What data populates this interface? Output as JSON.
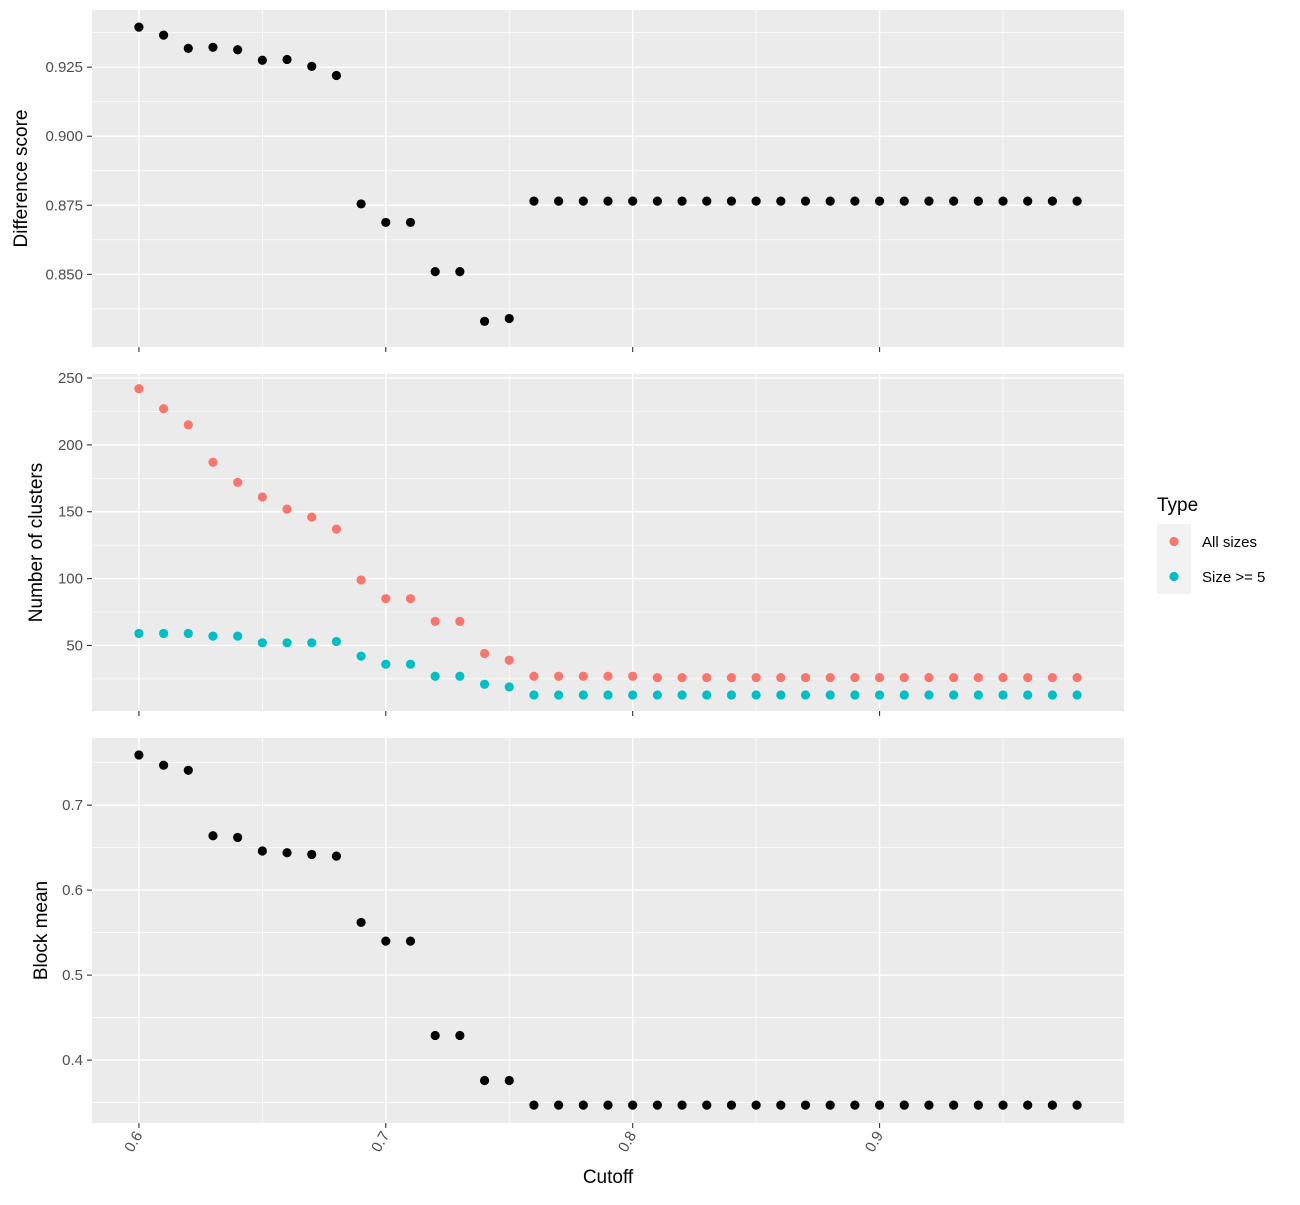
{
  "colors": {
    "panel_background": "#ebebeb",
    "grid": "#ffffff",
    "point_default": "#000000",
    "all_sizes": "#f8766d",
    "size_ge_5": "#00bfc4"
  },
  "x_axis": {
    "label": "Cutoff",
    "ticks": [
      "0.6",
      "0.7",
      "0.8",
      "0.9"
    ],
    "tick_values": [
      0.6,
      0.7,
      0.8,
      0.9
    ],
    "tick_label_rotation_deg": -60
  },
  "legend": {
    "title": "Type",
    "entries": [
      {
        "label": "All sizes",
        "color": "#f8766d"
      },
      {
        "label": "Size >= 5",
        "color": "#00bfc4"
      }
    ],
    "placement": "right"
  },
  "chart_data": [
    {
      "type": "scatter",
      "ylabel": "Difference score",
      "xlim": [
        0.581,
        0.999
      ],
      "ylim": [
        0.8237,
        0.9457
      ],
      "y_ticks": [
        0.85,
        0.875,
        0.9,
        0.925
      ],
      "y_tick_labels": [
        "0.850",
        "0.875",
        "0.900",
        "0.925"
      ],
      "grid": true,
      "series": [
        {
          "color": "#000000",
          "x": [
            0.6,
            0.61,
            0.62,
            0.63,
            0.64,
            0.65,
            0.66,
            0.67,
            0.68,
            0.69,
            0.7,
            0.71,
            0.72,
            0.73,
            0.74,
            0.75,
            0.76,
            0.77,
            0.78,
            0.79,
            0.8,
            0.81,
            0.82,
            0.83,
            0.84,
            0.85,
            0.86,
            0.87,
            0.88,
            0.89,
            0.9,
            0.91,
            0.92,
            0.93,
            0.94,
            0.95,
            0.96,
            0.97,
            0.98
          ],
          "y": [
            0.9395,
            0.9366,
            0.9318,
            0.9322,
            0.9313,
            0.9275,
            0.9278,
            0.9253,
            0.922,
            0.8755,
            0.8688,
            0.8688,
            0.851,
            0.851,
            0.833,
            0.834,
            0.8765,
            0.8765,
            0.8765,
            0.8765,
            0.8765,
            0.8765,
            0.8765,
            0.8765,
            0.8765,
            0.8765,
            0.8765,
            0.8765,
            0.8765,
            0.8765,
            0.8765,
            0.8765,
            0.8765,
            0.8765,
            0.8765,
            0.8765,
            0.8765,
            0.8765,
            0.8765
          ]
        }
      ]
    },
    {
      "type": "scatter",
      "ylabel": "Number of clusters",
      "xlim": [
        0.581,
        0.999
      ],
      "ylim": [
        1,
        253
      ],
      "y_ticks": [
        50,
        100,
        150,
        200,
        250
      ],
      "y_tick_labels": [
        "50",
        "100",
        "150",
        "200",
        "250"
      ],
      "grid": true,
      "series": [
        {
          "name": "All sizes",
          "color": "#f8766d",
          "x": [
            0.6,
            0.61,
            0.62,
            0.63,
            0.64,
            0.65,
            0.66,
            0.67,
            0.68,
            0.69,
            0.7,
            0.71,
            0.72,
            0.73,
            0.74,
            0.75,
            0.76,
            0.77,
            0.78,
            0.79,
            0.8,
            0.81,
            0.82,
            0.83,
            0.84,
            0.85,
            0.86,
            0.87,
            0.88,
            0.89,
            0.9,
            0.91,
            0.92,
            0.93,
            0.94,
            0.95,
            0.96,
            0.97,
            0.98
          ],
          "y": [
            242,
            227,
            215,
            187,
            172,
            161,
            152,
            146,
            137,
            99,
            85,
            85,
            68,
            68,
            44,
            39,
            27,
            27,
            27,
            27,
            27,
            26,
            26,
            26,
            26,
            26,
            26,
            26,
            26,
            26,
            26,
            26,
            26,
            26,
            26,
            26,
            26,
            26,
            26
          ]
        },
        {
          "name": "Size >= 5",
          "color": "#00bfc4",
          "x": [
            0.6,
            0.61,
            0.62,
            0.63,
            0.64,
            0.65,
            0.66,
            0.67,
            0.68,
            0.69,
            0.7,
            0.71,
            0.72,
            0.73,
            0.74,
            0.75,
            0.76,
            0.77,
            0.78,
            0.79,
            0.8,
            0.81,
            0.82,
            0.83,
            0.84,
            0.85,
            0.86,
            0.87,
            0.88,
            0.89,
            0.9,
            0.91,
            0.92,
            0.93,
            0.94,
            0.95,
            0.96,
            0.97,
            0.98
          ],
          "y": [
            59,
            59,
            59,
            57,
            57,
            52,
            52,
            52,
            53,
            42,
            36,
            36,
            27,
            27,
            21,
            19,
            13,
            13,
            13,
            13,
            13,
            13,
            13,
            13,
            13,
            13,
            13,
            13,
            13,
            13,
            13,
            13,
            13,
            13,
            13,
            13,
            13,
            13,
            13
          ]
        }
      ]
    },
    {
      "type": "scatter",
      "ylabel": "Block mean",
      "xlim": [
        0.581,
        0.999
      ],
      "ylim": [
        0.326,
        0.779
      ],
      "y_ticks": [
        0.4,
        0.5,
        0.6,
        0.7
      ],
      "y_tick_labels": [
        "0.4",
        "0.5",
        "0.6",
        "0.7"
      ],
      "grid": true,
      "series": [
        {
          "color": "#000000",
          "x": [
            0.6,
            0.61,
            0.62,
            0.63,
            0.64,
            0.65,
            0.66,
            0.67,
            0.68,
            0.69,
            0.7,
            0.71,
            0.72,
            0.73,
            0.74,
            0.75,
            0.76,
            0.77,
            0.78,
            0.79,
            0.8,
            0.81,
            0.82,
            0.83,
            0.84,
            0.85,
            0.86,
            0.87,
            0.88,
            0.89,
            0.9,
            0.91,
            0.92,
            0.93,
            0.94,
            0.95,
            0.96,
            0.97,
            0.98
          ],
          "y": [
            0.759,
            0.747,
            0.741,
            0.664,
            0.662,
            0.646,
            0.644,
            0.642,
            0.64,
            0.562,
            0.54,
            0.54,
            0.429,
            0.429,
            0.376,
            0.376,
            0.347,
            0.347,
            0.347,
            0.347,
            0.347,
            0.347,
            0.347,
            0.347,
            0.347,
            0.347,
            0.347,
            0.347,
            0.347,
            0.347,
            0.347,
            0.347,
            0.347,
            0.347,
            0.347,
            0.347,
            0.347,
            0.347,
            0.347
          ]
        }
      ]
    }
  ]
}
